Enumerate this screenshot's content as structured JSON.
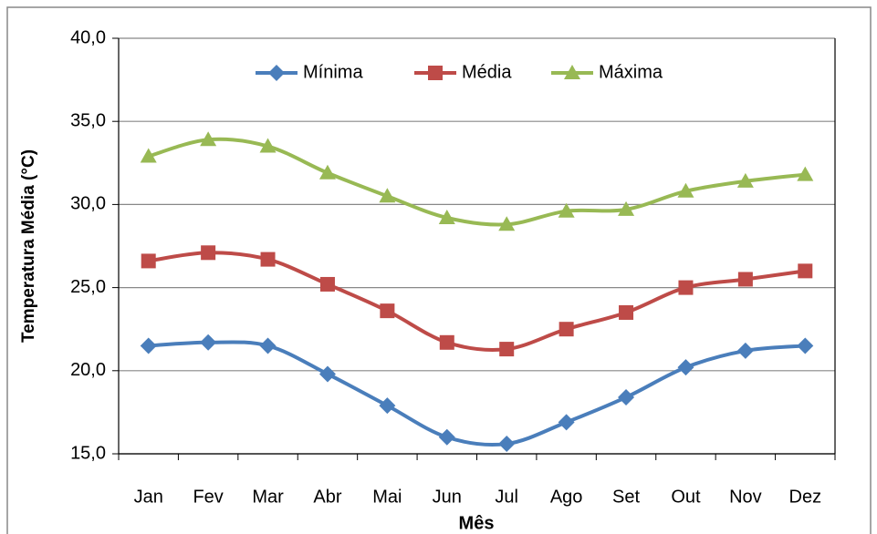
{
  "chart_data": {
    "type": "line",
    "x_label": "Mês",
    "y_label": "Temperatura Média (°C)",
    "categories": [
      "Jan",
      "Fev",
      "Mar",
      "Abr",
      "Mai",
      "Jun",
      "Jul",
      "Ago",
      "Set",
      "Out",
      "Nov",
      "Dez"
    ],
    "series": [
      {
        "name": "Mínima",
        "color": "#4a7ebb",
        "marker": "diamond",
        "values": [
          21.5,
          21.7,
          21.5,
          19.8,
          17.9,
          16.0,
          15.6,
          16.9,
          18.4,
          20.2,
          21.2,
          21.5
        ]
      },
      {
        "name": "Média",
        "color": "#be4b48",
        "marker": "square",
        "values": [
          26.6,
          27.1,
          26.7,
          25.2,
          23.6,
          21.7,
          21.3,
          22.5,
          23.5,
          25.0,
          25.5,
          26.0
        ]
      },
      {
        "name": "Máxima",
        "color": "#98b954",
        "marker": "triangle",
        "values": [
          32.9,
          33.9,
          33.5,
          31.9,
          30.5,
          29.2,
          28.8,
          29.6,
          29.7,
          30.8,
          31.4,
          31.8
        ]
      }
    ],
    "ylim": [
      15,
      40
    ],
    "yticks": [
      {
        "value": 15,
        "label": "15,0"
      },
      {
        "value": 20,
        "label": "20,0"
      },
      {
        "value": 25,
        "label": "25,0"
      },
      {
        "value": 30,
        "label": "30,0"
      },
      {
        "value": 35,
        "label": "35,0"
      },
      {
        "value": 40,
        "label": "40,0"
      }
    ],
    "grid": true,
    "legend": "top",
    "smooth": true
  }
}
